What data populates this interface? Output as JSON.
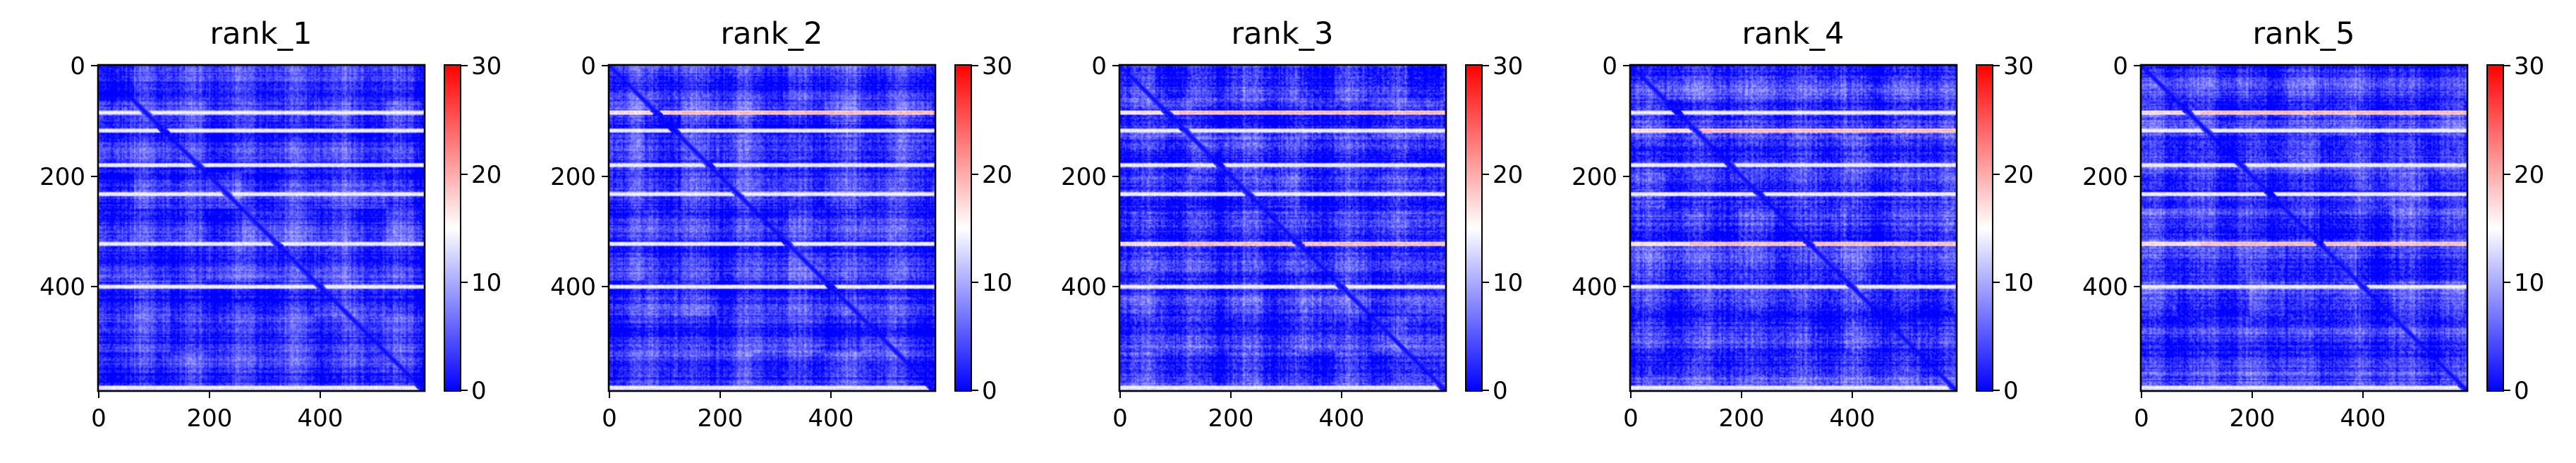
{
  "chart_data": [
    {
      "type": "heatmap",
      "title": "rank_1",
      "x_ticks": [
        "0",
        "200",
        "400"
      ],
      "y_ticks": [
        "0",
        "200",
        "400"
      ],
      "xlim": [
        0,
        590
      ],
      "ylim": [
        590,
        0
      ],
      "colormap": "bwr",
      "colorbar": {
        "ticks": [
          "0",
          "10",
          "20",
          "30"
        ],
        "range": [
          0,
          30
        ]
      },
      "matrix_size": 590,
      "white_bands": [
        85,
        118,
        180,
        233,
        322,
        400,
        583
      ],
      "red_bands": [],
      "noise_level": 0.28
    },
    {
      "type": "heatmap",
      "title": "rank_2",
      "x_ticks": [
        "0",
        "200",
        "400"
      ],
      "y_ticks": [
        "0",
        "200",
        "400"
      ],
      "xlim": [
        0,
        590
      ],
      "ylim": [
        590,
        0
      ],
      "colormap": "bwr",
      "colorbar": {
        "ticks": [
          "0",
          "10",
          "20",
          "30"
        ],
        "range": [
          0,
          30
        ]
      },
      "matrix_size": 590,
      "white_bands": [
        118,
        180,
        233,
        322,
        400,
        583
      ],
      "red_bands": [
        85
      ],
      "noise_level": 0.3
    },
    {
      "type": "heatmap",
      "title": "rank_3",
      "x_ticks": [
        "0",
        "200",
        "400"
      ],
      "y_ticks": [
        "0",
        "200",
        "400"
      ],
      "xlim": [
        0,
        590
      ],
      "ylim": [
        590,
        0
      ],
      "colormap": "bwr",
      "colorbar": {
        "ticks": [
          "0",
          "10",
          "20",
          "30"
        ],
        "range": [
          0,
          30
        ]
      },
      "matrix_size": 590,
      "white_bands": [
        118,
        180,
        233,
        400,
        583
      ],
      "red_bands": [
        85,
        322
      ],
      "noise_level": 0.34
    },
    {
      "type": "heatmap",
      "title": "rank_4",
      "x_ticks": [
        "0",
        "200",
        "400"
      ],
      "y_ticks": [
        "0",
        "200",
        "400"
      ],
      "xlim": [
        0,
        590
      ],
      "ylim": [
        590,
        0
      ],
      "colormap": "bwr",
      "colorbar": {
        "ticks": [
          "0",
          "10",
          "20",
          "30"
        ],
        "range": [
          0,
          30
        ]
      },
      "matrix_size": 590,
      "white_bands": [
        85,
        180,
        233,
        400,
        583
      ],
      "red_bands": [
        118,
        322
      ],
      "noise_level": 0.34
    },
    {
      "type": "heatmap",
      "title": "rank_5",
      "x_ticks": [
        "0",
        "200",
        "400"
      ],
      "y_ticks": [
        "0",
        "200",
        "400"
      ],
      "xlim": [
        0,
        590
      ],
      "ylim": [
        590,
        0
      ],
      "colormap": "bwr",
      "colorbar": {
        "ticks": [
          "0",
          "10",
          "20",
          "30"
        ],
        "range": [
          0,
          30
        ]
      },
      "matrix_size": 590,
      "white_bands": [
        118,
        180,
        233,
        400,
        583
      ],
      "red_bands": [
        85,
        322
      ],
      "noise_level": 0.32
    }
  ],
  "colors": {
    "low": "#0000ff",
    "mid": "#ffffff",
    "high": "#ff0000"
  }
}
